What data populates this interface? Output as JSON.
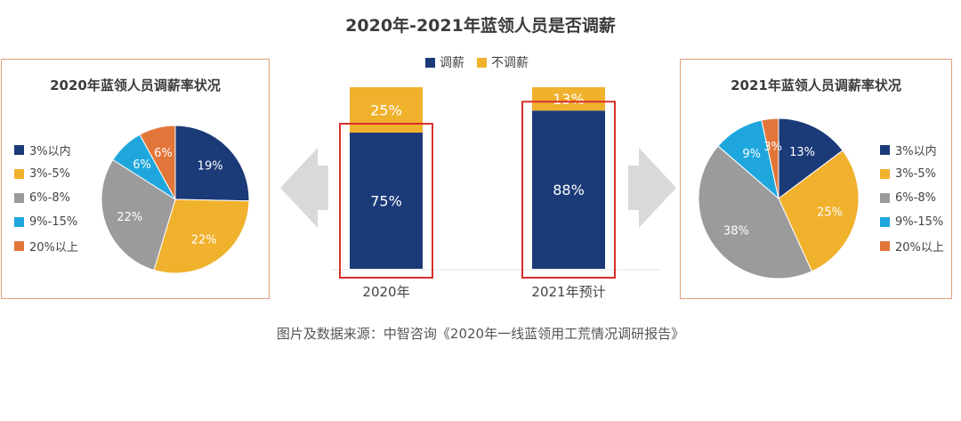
{
  "title": "2020年-2021年蓝领人员是否调薪",
  "legend": [
    {
      "label": "调薪",
      "color": "#1b3a78"
    },
    {
      "label": "不调薪",
      "color": "#f0b12d"
    }
  ],
  "source": "图片及数据来源：中智咨询《2020年一线蓝领用工荒情况调研报告》",
  "chart_data": [
    {
      "type": "bar",
      "stacked": true,
      "title": "2020年-2021年蓝领人员是否调薪",
      "categories": [
        "2020年",
        "2021年预计"
      ],
      "series": [
        {
          "name": "调薪",
          "values": [
            75,
            88
          ],
          "labels": [
            "75%",
            "88%"
          ],
          "color": "#1b3a78"
        },
        {
          "name": "不调薪",
          "values": [
            25,
            13
          ],
          "labels": [
            "25%",
            "13%"
          ],
          "color": "#f0b12d"
        }
      ],
      "ylim": [
        0,
        100
      ],
      "highlight_color": "#d9302c"
    },
    {
      "type": "pie",
      "title": "2020年蓝领人员调薪率状况",
      "categories": [
        "3%以内",
        "3%-5%",
        "6%-8%",
        "9%-15%",
        "20%以上"
      ],
      "values": [
        19,
        22,
        22,
        6,
        6
      ],
      "labels": [
        "19%",
        "22%",
        "22%",
        "6%",
        "6%"
      ],
      "colors": [
        "#1b3a78",
        "#f0b12d",
        "#9b9b9b",
        "#1fa7dd",
        "#e2763a"
      ]
    },
    {
      "type": "pie",
      "title": "2021年蓝领人员调薪率状况",
      "categories": [
        "3%以内",
        "3%-5%",
        "6%-8%",
        "9%-15%",
        "20%以上"
      ],
      "values": [
        13,
        25,
        38,
        9,
        3
      ],
      "labels": [
        "13%",
        "25%",
        "38%",
        "9%",
        "3%"
      ],
      "colors": [
        "#1b3a78",
        "#f0b12d",
        "#9b9b9b",
        "#1fa7dd",
        "#e2763a"
      ]
    }
  ]
}
